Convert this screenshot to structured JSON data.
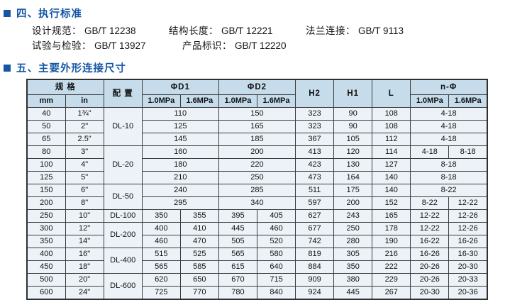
{
  "standards": {
    "heading": "四、执行标准",
    "items": [
      {
        "label": "设计规范：",
        "value": "GB/T 12238"
      },
      {
        "label": "结构长度：",
        "value": "GB/T 12221"
      },
      {
        "label": "法兰连接：",
        "value": "GB/T 9113"
      },
      {
        "label": "试验与检验：",
        "value": "GB/T 13927"
      },
      {
        "label": "产品标识：",
        "value": "GB/T 12220"
      }
    ]
  },
  "dimensions": {
    "heading": "五、主要外形连接尺寸"
  },
  "colors": {
    "heading_blue": "#1456a4",
    "table_header_bg": "#c6dcea",
    "table_cell_bg": "#ecf2f7",
    "border": "#3c3c3c"
  },
  "table": {
    "header_rows": [
      [
        {
          "t": "规 格",
          "cs": 2
        },
        {
          "t": "配 置",
          "rs": 2
        },
        {
          "t": "ΦD1",
          "cs": 2
        },
        {
          "t": "ΦD2",
          "cs": 2
        },
        {
          "t": "H2",
          "rs": 2
        },
        {
          "t": "H1",
          "rs": 2
        },
        {
          "t": "L",
          "rs": 2
        },
        {
          "t": "n-Φ",
          "cs": 2
        }
      ],
      [
        {
          "t": "mm"
        },
        {
          "t": "in"
        },
        {
          "t": "1.0MPa"
        },
        {
          "t": "1.6MPa"
        },
        {
          "t": "1.0MPa"
        },
        {
          "t": "1.6MPa"
        },
        {
          "t": "1.0MPa"
        },
        {
          "t": "1.6MPa"
        }
      ]
    ],
    "rows": [
      [
        {
          "t": "40"
        },
        {
          "t": "1¾\""
        },
        {
          "t": "DL-10",
          "rs": 3
        },
        {
          "t": "110",
          "cs": 2
        },
        {
          "t": "150",
          "cs": 2
        },
        {
          "t": "323"
        },
        {
          "t": "90"
        },
        {
          "t": "108"
        },
        {
          "t": "4-18",
          "cs": 2
        }
      ],
      [
        {
          "t": "50"
        },
        {
          "t": "2\""
        },
        {
          "t": "125",
          "cs": 2
        },
        {
          "t": "165",
          "cs": 2
        },
        {
          "t": "323"
        },
        {
          "t": "90"
        },
        {
          "t": "108"
        },
        {
          "t": "4-18",
          "cs": 2
        }
      ],
      [
        {
          "t": "65"
        },
        {
          "t": "2.5\""
        },
        {
          "t": "145",
          "cs": 2
        },
        {
          "t": "185",
          "cs": 2
        },
        {
          "t": "367"
        },
        {
          "t": "105"
        },
        {
          "t": "112"
        },
        {
          "t": "4-18",
          "cs": 2
        }
      ],
      [
        {
          "t": "80"
        },
        {
          "t": "3\""
        },
        {
          "t": "DL-20",
          "rs": 3
        },
        {
          "t": "160",
          "cs": 2
        },
        {
          "t": "200",
          "cs": 2
        },
        {
          "t": "413"
        },
        {
          "t": "120"
        },
        {
          "t": "114"
        },
        {
          "t": "4-18"
        },
        {
          "t": "8-18"
        }
      ],
      [
        {
          "t": "100"
        },
        {
          "t": "4\""
        },
        {
          "t": "180",
          "cs": 2
        },
        {
          "t": "220",
          "cs": 2
        },
        {
          "t": "423"
        },
        {
          "t": "130"
        },
        {
          "t": "127"
        },
        {
          "t": "8-18",
          "cs": 2
        }
      ],
      [
        {
          "t": "125"
        },
        {
          "t": "5\""
        },
        {
          "t": "210",
          "cs": 2
        },
        {
          "t": "250",
          "cs": 2
        },
        {
          "t": "473"
        },
        {
          "t": "164"
        },
        {
          "t": "140"
        },
        {
          "t": "8-18",
          "cs": 2
        }
      ],
      [
        {
          "t": "150"
        },
        {
          "t": "6\""
        },
        {
          "t": "DL-50",
          "rs": 2
        },
        {
          "t": "240",
          "cs": 2
        },
        {
          "t": "285",
          "cs": 2
        },
        {
          "t": "511"
        },
        {
          "t": "175"
        },
        {
          "t": "140"
        },
        {
          "t": "8-22",
          "cs": 2
        }
      ],
      [
        {
          "t": "200"
        },
        {
          "t": "8\""
        },
        {
          "t": "295",
          "cs": 2
        },
        {
          "t": "340",
          "cs": 2
        },
        {
          "t": "597"
        },
        {
          "t": "200"
        },
        {
          "t": "152"
        },
        {
          "t": "8-22"
        },
        {
          "t": "12-22"
        }
      ],
      [
        {
          "t": "250"
        },
        {
          "t": "10\""
        },
        {
          "t": "DL-100"
        },
        {
          "t": "350"
        },
        {
          "t": "355"
        },
        {
          "t": "395"
        },
        {
          "t": "405"
        },
        {
          "t": "627"
        },
        {
          "t": "243"
        },
        {
          "t": "165"
        },
        {
          "t": "12-22"
        },
        {
          "t": "12-26"
        }
      ],
      [
        {
          "t": "300"
        },
        {
          "t": "12\""
        },
        {
          "t": "DL-200",
          "rs": 2
        },
        {
          "t": "400"
        },
        {
          "t": "410"
        },
        {
          "t": "445"
        },
        {
          "t": "460"
        },
        {
          "t": "677"
        },
        {
          "t": "250"
        },
        {
          "t": "178"
        },
        {
          "t": "12-22"
        },
        {
          "t": "12-26"
        }
      ],
      [
        {
          "t": "350"
        },
        {
          "t": "14\""
        },
        {
          "t": "460"
        },
        {
          "t": "470"
        },
        {
          "t": "505"
        },
        {
          "t": "520"
        },
        {
          "t": "742"
        },
        {
          "t": "280"
        },
        {
          "t": "190"
        },
        {
          "t": "16-22"
        },
        {
          "t": "16-26"
        }
      ],
      [
        {
          "t": "400"
        },
        {
          "t": "16\""
        },
        {
          "t": "DL-400",
          "rs": 2
        },
        {
          "t": "515"
        },
        {
          "t": "525"
        },
        {
          "t": "565"
        },
        {
          "t": "580"
        },
        {
          "t": "819"
        },
        {
          "t": "305"
        },
        {
          "t": "216"
        },
        {
          "t": "16-26"
        },
        {
          "t": "16-30"
        }
      ],
      [
        {
          "t": "450"
        },
        {
          "t": "18\""
        },
        {
          "t": "565"
        },
        {
          "t": "585"
        },
        {
          "t": "615"
        },
        {
          "t": "640"
        },
        {
          "t": "884"
        },
        {
          "t": "350"
        },
        {
          "t": "222"
        },
        {
          "t": "20-26"
        },
        {
          "t": "20-30"
        }
      ],
      [
        {
          "t": "500"
        },
        {
          "t": "20\""
        },
        {
          "t": "DL-600",
          "rs": 2
        },
        {
          "t": "620"
        },
        {
          "t": "650"
        },
        {
          "t": "670"
        },
        {
          "t": "715"
        },
        {
          "t": "909"
        },
        {
          "t": "380"
        },
        {
          "t": "229"
        },
        {
          "t": "20-26"
        },
        {
          "t": "20-33"
        }
      ],
      [
        {
          "t": "600"
        },
        {
          "t": "24\""
        },
        {
          "t": "725"
        },
        {
          "t": "770"
        },
        {
          "t": "780"
        },
        {
          "t": "840"
        },
        {
          "t": "924"
        },
        {
          "t": "445"
        },
        {
          "t": "267"
        },
        {
          "t": "20-30"
        },
        {
          "t": "20-36"
        }
      ]
    ]
  }
}
